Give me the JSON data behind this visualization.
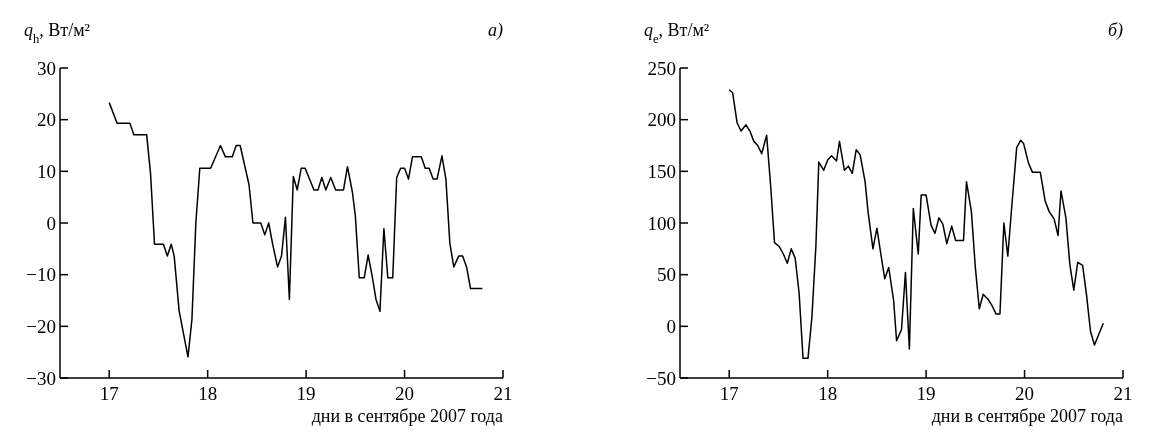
{
  "chart_data": [
    {
      "type": "line",
      "ylabel": "q$_{h}$, Вт/м²",
      "xlabel": "дни в сентябре 2007 года",
      "annotations": [
        "а)"
      ],
      "xlim": [
        16.5,
        21
      ],
      "xticks": [
        17,
        18,
        19,
        20,
        21
      ],
      "ylim": [
        -30,
        30
      ],
      "yticks": [
        -30,
        -20,
        -10,
        0,
        10,
        20,
        30
      ],
      "grid": false,
      "series": [
        {
          "color": "#000000",
          "x": [
            17.0,
            17.08,
            17.21,
            17.25,
            17.38,
            17.42,
            17.46,
            17.55,
            17.59,
            17.63,
            17.66,
            17.71,
            17.8,
            17.84,
            17.88,
            17.92,
            18.03,
            18.13,
            18.18,
            18.25,
            18.29,
            18.33,
            18.42,
            18.46,
            18.54,
            18.58,
            18.62,
            18.66,
            18.71,
            18.75,
            18.79,
            18.83,
            18.87,
            18.91,
            18.95,
            18.99,
            19.08,
            19.12,
            19.16,
            19.2,
            19.25,
            19.3,
            19.38,
            19.42,
            19.47,
            19.5,
            19.54,
            19.59,
            19.63,
            19.67,
            19.71,
            19.75,
            19.79,
            19.83,
            19.88,
            19.92,
            19.96,
            20.0,
            20.04,
            20.08,
            20.17,
            20.21,
            20.25,
            20.29,
            20.33,
            20.38,
            20.42,
            20.46,
            20.5,
            20.55,
            20.59,
            20.63,
            20.67,
            20.79
          ],
          "values": [
            23.3,
            19.3,
            19.3,
            17.1,
            17.1,
            9.5,
            -4.1,
            -4.1,
            -6.4,
            -4.1,
            -6.4,
            -17,
            -25.9,
            -18.7,
            0,
            10.6,
            10.6,
            15,
            12.8,
            12.8,
            15,
            15,
            7.4,
            0,
            0,
            -2.3,
            0,
            -4.1,
            -8.5,
            -6.4,
            1.1,
            -14.8,
            9,
            6.4,
            10.6,
            10.6,
            6.4,
            6.4,
            8.8,
            6.4,
            8.8,
            6.4,
            6.4,
            10.9,
            6,
            1.4,
            -10.6,
            -10.6,
            -6.2,
            -10.2,
            -14.8,
            -17.1,
            -1.1,
            -10.6,
            -10.6,
            8.8,
            10.6,
            10.6,
            8.5,
            12.8,
            12.8,
            10.6,
            10.6,
            8.5,
            8.5,
            13,
            8.5,
            -3.9,
            -8.5,
            -6.4,
            -6.4,
            -8.5,
            -12.7,
            -12.7
          ]
        }
      ]
    },
    {
      "type": "line",
      "ylabel": "q$_{e}$, Вт/м²",
      "xlabel": "дни в сентябре 2007 года",
      "annotations": [
        "б)"
      ],
      "xlim": [
        16.5,
        21
      ],
      "xticks": [
        17,
        18,
        19,
        20,
        21
      ],
      "ylim": [
        -50,
        250
      ],
      "yticks": [
        -50,
        0,
        50,
        100,
        150,
        200,
        250
      ],
      "grid": false,
      "series": [
        {
          "color": "#000000",
          "x": [
            17.0,
            17.035,
            17.08,
            17.12,
            17.17,
            17.21,
            17.25,
            17.29,
            17.33,
            17.38,
            17.42,
            17.46,
            17.51,
            17.55,
            17.59,
            17.63,
            17.67,
            17.71,
            17.75,
            17.8,
            17.84,
            17.88,
            17.91,
            17.96,
            18.0,
            18.04,
            18.09,
            18.12,
            18.17,
            18.21,
            18.25,
            18.29,
            18.33,
            18.38,
            18.41,
            18.46,
            18.5,
            18.54,
            18.58,
            18.62,
            18.67,
            18.7,
            18.75,
            18.79,
            18.83,
            18.87,
            18.92,
            18.95,
            19.0,
            19.05,
            19.09,
            19.13,
            19.17,
            19.21,
            19.26,
            19.3,
            19.38,
            19.41,
            19.46,
            19.5,
            19.54,
            19.58,
            19.63,
            19.67,
            19.71,
            19.75,
            19.79,
            19.83,
            19.87,
            19.92,
            19.96,
            19.99,
            20.04,
            20.08,
            20.16,
            20.21,
            20.25,
            20.3,
            20.34,
            20.37,
            20.42,
            20.46,
            20.5,
            20.54,
            20.59,
            20.63,
            20.67,
            20.71,
            20.8
          ],
          "values": [
            229,
            226,
            197,
            189,
            195,
            189,
            179,
            175,
            167,
            185,
            137,
            81,
            77,
            70,
            61,
            75,
            66,
            32,
            -31,
            -31,
            9,
            77,
            159,
            151,
            161,
            165,
            160,
            179,
            151,
            155,
            148,
            171,
            166,
            140,
            111,
            75,
            95,
            70,
            46,
            57,
            25,
            -14,
            -3,
            52,
            -22,
            114,
            70,
            127,
            127,
            98,
            90,
            105,
            99,
            80,
            97,
            83,
            83,
            140,
            111,
            57,
            17,
            31,
            26,
            20,
            12,
            12,
            100,
            68,
            116,
            173,
            180,
            177,
            158,
            149,
            149,
            121,
            111,
            104,
            88,
            131,
            105,
            60,
            35,
            62,
            59,
            30,
            -5,
            -18,
            3
          ]
        }
      ]
    }
  ]
}
